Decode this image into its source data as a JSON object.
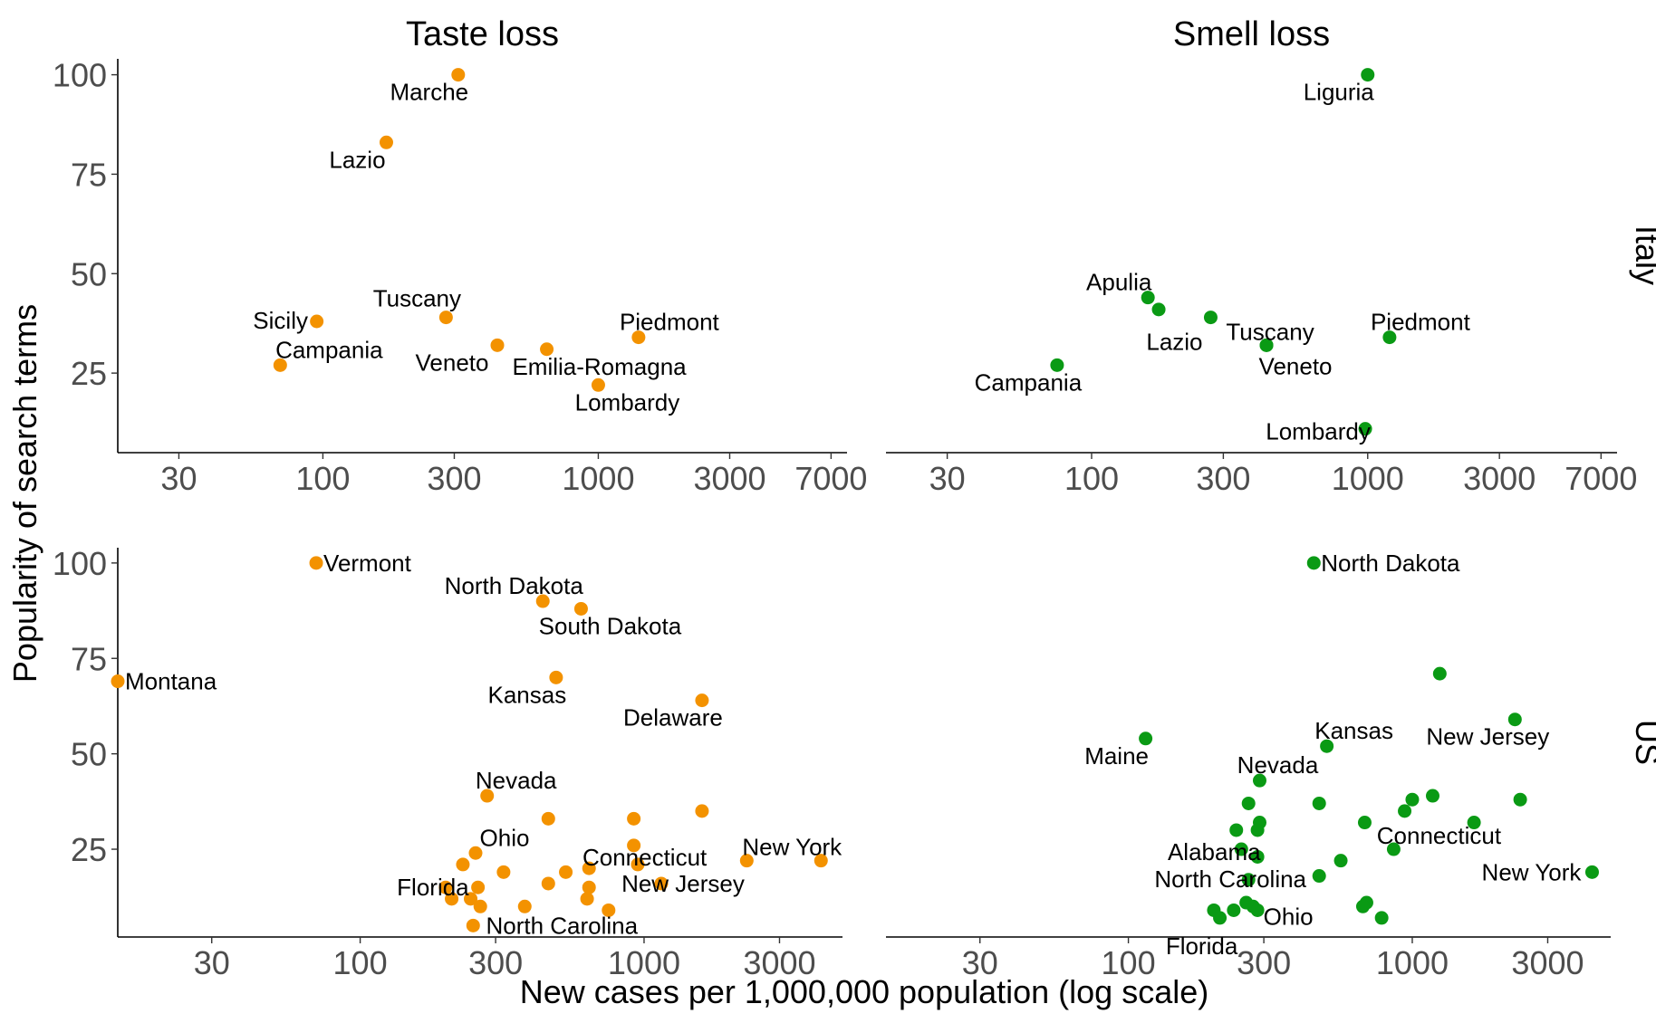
{
  "chart_data": {
    "type": "scatter",
    "facets": {
      "columns": [
        "Taste loss",
        "Smell loss"
      ],
      "rows": [
        "Italy",
        "US"
      ]
    },
    "xlabel": "New cases per 1,000,000 population (log scale)",
    "ylabel": "Popularity of search terms",
    "x_scale": "log",
    "y_ticks": [
      "25",
      "50",
      "75",
      "100"
    ],
    "x_ticks_italy": [
      "30",
      "100",
      "300",
      "1000",
      "3000",
      "7000"
    ],
    "x_ticks_us": [
      "30",
      "100",
      "300",
      "1000",
      "3000"
    ],
    "colors": {
      "Taste loss": "#f39200",
      "Smell loss": "#0a9a14"
    },
    "panels": [
      {
        "column": "Taste loss",
        "row": "Italy",
        "xlim": [
          18,
          8000
        ],
        "ylim": [
          5,
          104
        ],
        "points": [
          {
            "label": "Marche",
            "x": 310,
            "y": 100
          },
          {
            "label": "Lazio",
            "x": 170,
            "y": 83
          },
          {
            "label": "Sicily",
            "x": 95,
            "y": 38
          },
          {
            "label": "Tuscany",
            "x": 280,
            "y": 39
          },
          {
            "label": "Campania",
            "x": 70,
            "y": 27
          },
          {
            "label": "Veneto",
            "x": 430,
            "y": 32
          },
          {
            "label": "Emilia-Romagna",
            "x": 650,
            "y": 31
          },
          {
            "label": "Piedmont",
            "x": 1400,
            "y": 34
          },
          {
            "label": "Lombardy",
            "x": 1000,
            "y": 22
          }
        ]
      },
      {
        "column": "Smell loss",
        "row": "Italy",
        "xlim": [
          18,
          8000
        ],
        "ylim": [
          5,
          104
        ],
        "points": [
          {
            "label": "Liguria",
            "x": 1000,
            "y": 100
          },
          {
            "label": "Apulia",
            "x": 160,
            "y": 44
          },
          {
            "label": "",
            "x": 175,
            "y": 41
          },
          {
            "label": "Lazio",
            "x": 270,
            "y": 39
          },
          {
            "label": "Tuscany",
            "x": 430,
            "y": 32
          },
          {
            "label": "Piedmont",
            "x": 1200,
            "y": 34
          },
          {
            "label": "Campania",
            "x": 75,
            "y": 27
          },
          {
            "label": "Veneto",
            "x": 430,
            "y": 32
          },
          {
            "label": "Lombardy",
            "x": 980,
            "y": 11
          }
        ]
      },
      {
        "column": "Taste loss",
        "row": "US",
        "xlim": [
          14,
          5000
        ],
        "ylim": [
          2,
          104
        ],
        "points": [
          {
            "label": "Vermont",
            "x": 70,
            "y": 100
          },
          {
            "label": "North Dakota",
            "x": 440,
            "y": 90
          },
          {
            "label": "South Dakota",
            "x": 600,
            "y": 88
          },
          {
            "label": "Montana",
            "x": 14,
            "y": 69
          },
          {
            "label": "Kansas",
            "x": 490,
            "y": 70
          },
          {
            "label": "Delaware",
            "x": 1600,
            "y": 64
          },
          {
            "label": "Nevada",
            "x": 280,
            "y": 39
          },
          {
            "label": "",
            "x": 460,
            "y": 33
          },
          {
            "label": "",
            "x": 920,
            "y": 33
          },
          {
            "label": "",
            "x": 1600,
            "y": 35
          },
          {
            "label": "Ohio",
            "x": 255,
            "y": 24
          },
          {
            "label": "Connecticut",
            "x": 920,
            "y": 26
          },
          {
            "label": "New York",
            "x": 4200,
            "y": 22
          },
          {
            "label": "",
            "x": 2300,
            "y": 22
          },
          {
            "label": "",
            "x": 230,
            "y": 21
          },
          {
            "label": "",
            "x": 950,
            "y": 21
          },
          {
            "label": "",
            "x": 320,
            "y": 19
          },
          {
            "label": "",
            "x": 530,
            "y": 19
          },
          {
            "label": "",
            "x": 640,
            "y": 20
          },
          {
            "label": "",
            "x": 460,
            "y": 16
          },
          {
            "label": "New Jersey",
            "x": 1150,
            "y": 16
          },
          {
            "label": "",
            "x": 640,
            "y": 15
          },
          {
            "label": "Florida",
            "x": 200,
            "y": 15
          },
          {
            "label": "",
            "x": 260,
            "y": 15
          },
          {
            "label": "",
            "x": 210,
            "y": 12
          },
          {
            "label": "",
            "x": 245,
            "y": 12
          },
          {
            "label": "",
            "x": 265,
            "y": 10
          },
          {
            "label": "",
            "x": 380,
            "y": 10
          },
          {
            "label": "",
            "x": 630,
            "y": 12
          },
          {
            "label": "",
            "x": 750,
            "y": 9
          },
          {
            "label": "North Carolina",
            "x": 250,
            "y": 5
          }
        ]
      },
      {
        "column": "Smell loss",
        "row": "US",
        "xlim": [
          14,
          5000
        ],
        "ylim": [
          2,
          104
        ],
        "points": [
          {
            "label": "North Dakota",
            "x": 450,
            "y": 100
          },
          {
            "label": "",
            "x": 1250,
            "y": 71
          },
          {
            "label": "New Jersey",
            "x": 2300,
            "y": 59
          },
          {
            "label": "Maine",
            "x": 115,
            "y": 54
          },
          {
            "label": "Kansas",
            "x": 500,
            "y": 52
          },
          {
            "label": "Nevada",
            "x": 290,
            "y": 43
          },
          {
            "label": "",
            "x": 1000,
            "y": 38
          },
          {
            "label": "",
            "x": 1180,
            "y": 39
          },
          {
            "label": "",
            "x": 2400,
            "y": 38
          },
          {
            "label": "",
            "x": 265,
            "y": 37
          },
          {
            "label": "",
            "x": 470,
            "y": 37
          },
          {
            "label": "",
            "x": 940,
            "y": 35
          },
          {
            "label": "",
            "x": 680,
            "y": 32
          },
          {
            "label": "",
            "x": 1650,
            "y": 32
          },
          {
            "label": "",
            "x": 290,
            "y": 32
          },
          {
            "label": "",
            "x": 240,
            "y": 30
          },
          {
            "label": "",
            "x": 285,
            "y": 30
          },
          {
            "label": "Alabama",
            "x": 250,
            "y": 25
          },
          {
            "label": "Connecticut",
            "x": 860,
            "y": 25
          },
          {
            "label": "",
            "x": 285,
            "y": 23
          },
          {
            "label": "",
            "x": 560,
            "y": 22
          },
          {
            "label": "New York",
            "x": 4300,
            "y": 19
          },
          {
            "label": "",
            "x": 470,
            "y": 18
          },
          {
            "label": "North Carolina",
            "x": 265,
            "y": 17
          },
          {
            "label": "",
            "x": 690,
            "y": 11
          },
          {
            "label": "",
            "x": 670,
            "y": 10
          },
          {
            "label": "",
            "x": 260,
            "y": 11
          },
          {
            "label": "",
            "x": 275,
            "y": 10
          },
          {
            "label": "",
            "x": 235,
            "y": 9
          },
          {
            "label": "",
            "x": 200,
            "y": 9
          },
          {
            "label": "Ohio",
            "x": 285,
            "y": 9
          },
          {
            "label": "",
            "x": 780,
            "y": 7
          },
          {
            "label": "Florida",
            "x": 210,
            "y": 7
          }
        ]
      }
    ]
  }
}
